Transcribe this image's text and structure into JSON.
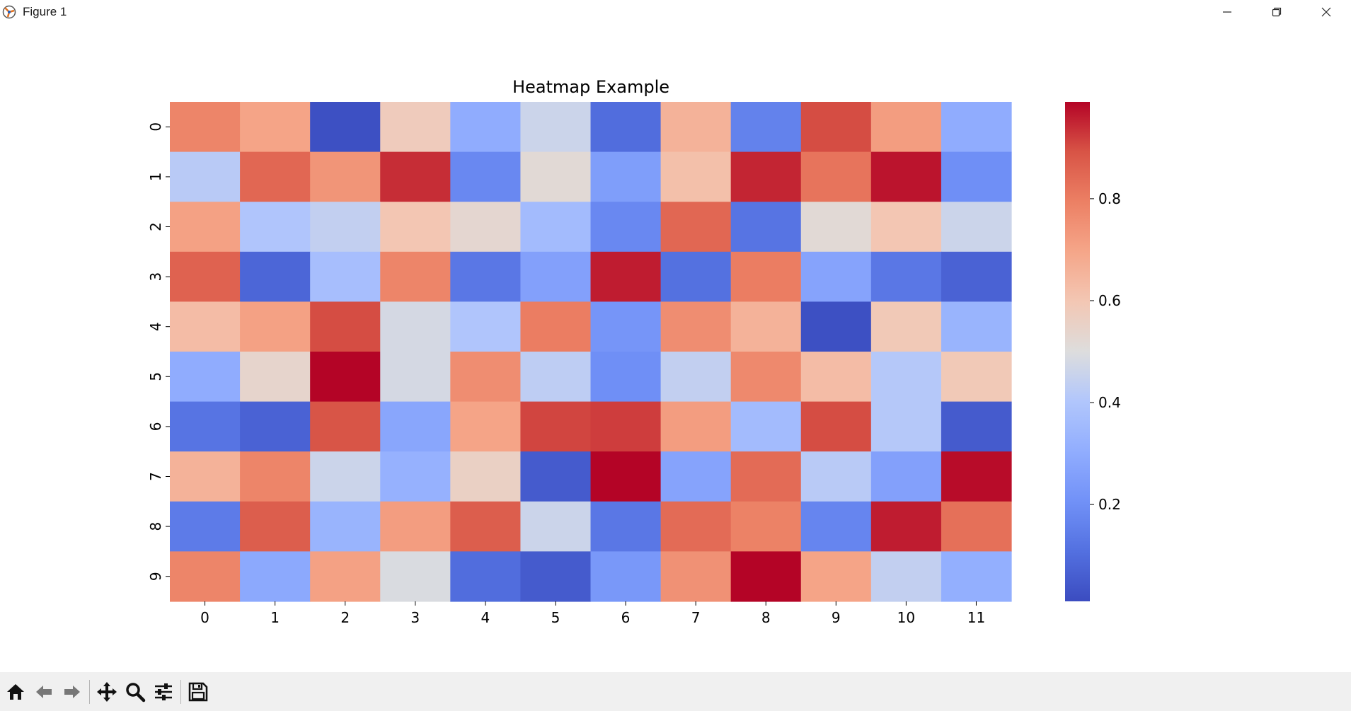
{
  "window": {
    "title": "Figure 1"
  },
  "toolbar": {
    "buttons": [
      {
        "icon": "home-icon"
      },
      {
        "icon": "back-arrow-icon"
      },
      {
        "icon": "forward-arrow-icon"
      },
      {
        "icon": "pan-move-icon"
      },
      {
        "icon": "zoom-magnifier-icon"
      },
      {
        "icon": "configure-subplots-icon"
      },
      {
        "icon": "save-floppy-icon"
      }
    ]
  },
  "chart_data": {
    "type": "heatmap",
    "title": "Heatmap Example",
    "xlabel": "",
    "ylabel": "",
    "colormap": "coolwarm",
    "x_categories": [
      "0",
      "1",
      "2",
      "3",
      "4",
      "5",
      "6",
      "7",
      "8",
      "9",
      "10",
      "11"
    ],
    "y_categories": [
      "0",
      "1",
      "2",
      "3",
      "4",
      "5",
      "6",
      "7",
      "8",
      "9"
    ],
    "values": [
      [
        0.78,
        0.7,
        0.02,
        0.58,
        0.3,
        0.46,
        0.1,
        0.66,
        0.16,
        0.9,
        0.72,
        0.3
      ],
      [
        0.42,
        0.85,
        0.74,
        0.94,
        0.18,
        0.52,
        0.25,
        0.62,
        0.95,
        0.82,
        0.97,
        0.2
      ],
      [
        0.71,
        0.4,
        0.44,
        0.6,
        0.53,
        0.36,
        0.18,
        0.85,
        0.12,
        0.52,
        0.6,
        0.46
      ],
      [
        0.86,
        0.08,
        0.37,
        0.78,
        0.13,
        0.26,
        0.96,
        0.11,
        0.8,
        0.27,
        0.13,
        0.07
      ],
      [
        0.63,
        0.71,
        0.9,
        0.48,
        0.4,
        0.8,
        0.22,
        0.76,
        0.66,
        0.02,
        0.59,
        0.33
      ],
      [
        0.3,
        0.54,
        0.99,
        0.48,
        0.76,
        0.43,
        0.2,
        0.44,
        0.77,
        0.63,
        0.41,
        0.59
      ],
      [
        0.12,
        0.07,
        0.89,
        0.28,
        0.7,
        0.91,
        0.92,
        0.72,
        0.36,
        0.9,
        0.41,
        0.05
      ],
      [
        0.66,
        0.78,
        0.46,
        0.32,
        0.56,
        0.05,
        1.0,
        0.27,
        0.84,
        0.42,
        0.26,
        0.98
      ],
      [
        0.14,
        0.87,
        0.33,
        0.72,
        0.87,
        0.46,
        0.13,
        0.84,
        0.79,
        0.17,
        0.96,
        0.83
      ],
      [
        0.78,
        0.29,
        0.71,
        0.49,
        0.1,
        0.05,
        0.23,
        0.75,
        1.0,
        0.7,
        0.44,
        0.31
      ]
    ],
    "colorbar": {
      "ticks": [
        0.2,
        0.4,
        0.6,
        0.8
      ],
      "tick_labels": [
        "0.2",
        "0.4",
        "0.6",
        "0.8"
      ],
      "range": [
        0.01,
        0.99
      ]
    },
    "grid": false
  }
}
